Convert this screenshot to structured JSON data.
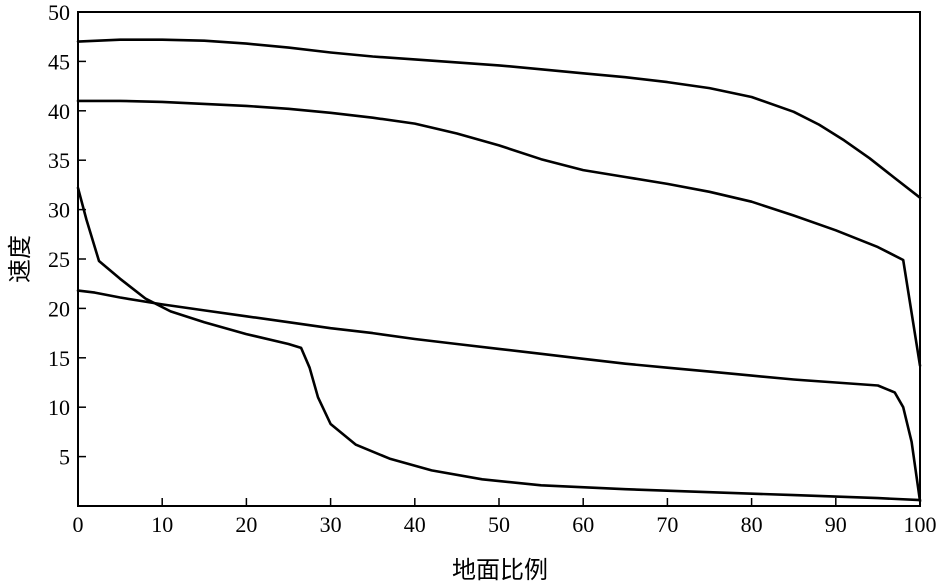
{
  "chart_data": {
    "type": "line",
    "title": "",
    "xlabel": "地面比例",
    "ylabel": "速度",
    "xlim": [
      0,
      100
    ],
    "ylim": [
      0,
      50
    ],
    "xticks": [
      0,
      10,
      20,
      30,
      40,
      50,
      60,
      70,
      80,
      90,
      100
    ],
    "yticks": [
      5,
      10,
      15,
      20,
      25,
      30,
      35,
      40,
      45,
      50
    ],
    "grid": false,
    "legend": "none",
    "line_color": "#000000",
    "series": [
      {
        "x": [
          0,
          5,
          10,
          15,
          20,
          25,
          30,
          35,
          40,
          45,
          50,
          55,
          60,
          65,
          70,
          75,
          80,
          85,
          88,
          91,
          94,
          97,
          100
        ],
        "values": [
          47.0,
          47.2,
          47.2,
          47.1,
          46.8,
          46.4,
          45.9,
          45.5,
          45.2,
          44.9,
          44.6,
          44.2,
          43.8,
          43.4,
          42.9,
          42.3,
          41.4,
          39.9,
          38.6,
          37.0,
          35.2,
          33.2,
          31.2
        ]
      },
      {
        "x": [
          0,
          5,
          10,
          15,
          20,
          25,
          30,
          35,
          40,
          45,
          50,
          55,
          60,
          65,
          70,
          75,
          80,
          85,
          90,
          95,
          98,
          100
        ],
        "values": [
          41.0,
          41.0,
          40.9,
          40.7,
          40.5,
          40.2,
          39.8,
          39.3,
          38.7,
          37.7,
          36.5,
          35.1,
          34.0,
          33.3,
          32.6,
          31.8,
          30.8,
          29.4,
          27.9,
          26.2,
          24.9,
          14.2
        ]
      },
      {
        "x": [
          0,
          2,
          5,
          10,
          15,
          20,
          25,
          30,
          35,
          40,
          45,
          50,
          55,
          60,
          65,
          70,
          75,
          80,
          85,
          90,
          95,
          97,
          98,
          99,
          100
        ],
        "values": [
          21.8,
          21.6,
          21.1,
          20.4,
          19.8,
          19.2,
          18.6,
          18.0,
          17.5,
          16.9,
          16.4,
          15.9,
          15.4,
          14.9,
          14.4,
          14.0,
          13.6,
          13.2,
          12.8,
          12.5,
          12.2,
          11.5,
          10.0,
          6.5,
          0.5
        ]
      },
      {
        "x": [
          0,
          1,
          2.5,
          5,
          8,
          11,
          15,
          20,
          25,
          26.5,
          27.5,
          28.5,
          30,
          33,
          37,
          42,
          48,
          55,
          65,
          75,
          85,
          95,
          100
        ],
        "values": [
          32.2,
          29.0,
          24.8,
          23.0,
          21.0,
          19.7,
          18.6,
          17.4,
          16.4,
          16.0,
          14.0,
          11.0,
          8.3,
          6.2,
          4.8,
          3.6,
          2.7,
          2.1,
          1.7,
          1.4,
          1.1,
          0.8,
          0.6
        ]
      }
    ]
  }
}
